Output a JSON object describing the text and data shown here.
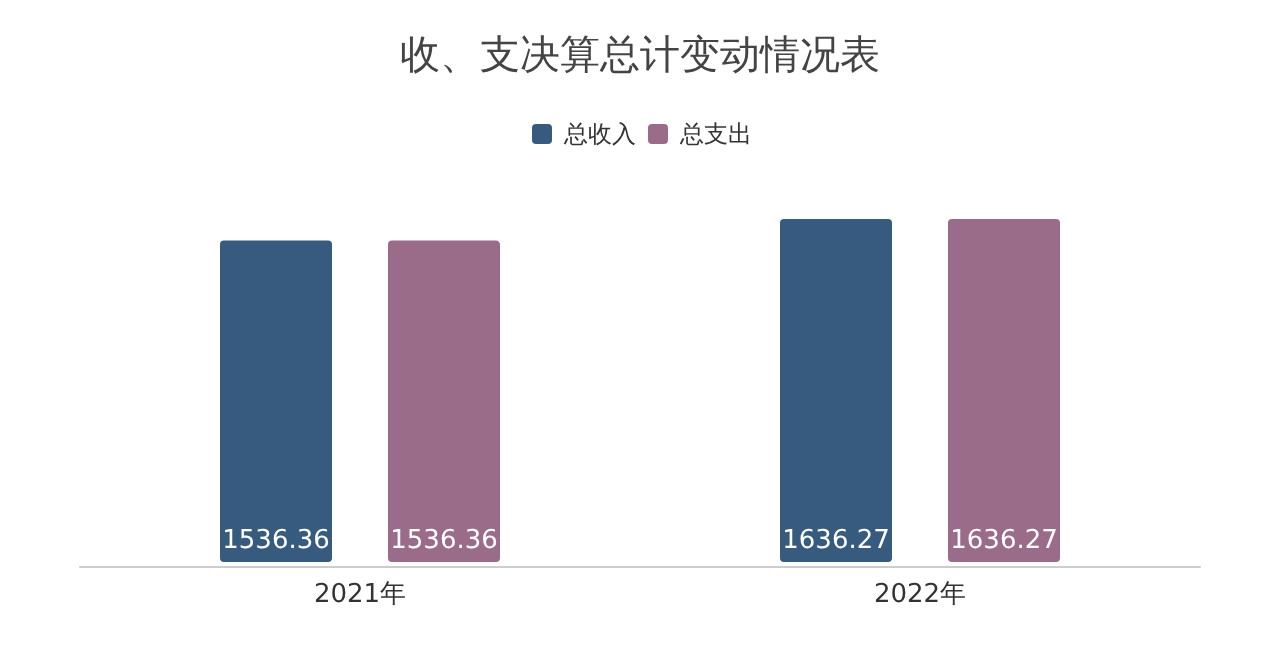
{
  "chart_data": {
    "type": "bar",
    "title": "收、支决算总计变动情况表",
    "categories": [
      "2021年",
      "2022年"
    ],
    "series": [
      {
        "name": "总收入",
        "color": "#375a7f",
        "values": [
          1536.36,
          1636.27
        ]
      },
      {
        "name": "总支出",
        "color": "#9b6b8a",
        "values": [
          1536.36,
          1636.27
        ]
      }
    ],
    "data_labels": true,
    "legend": "top",
    "grid": false
  }
}
